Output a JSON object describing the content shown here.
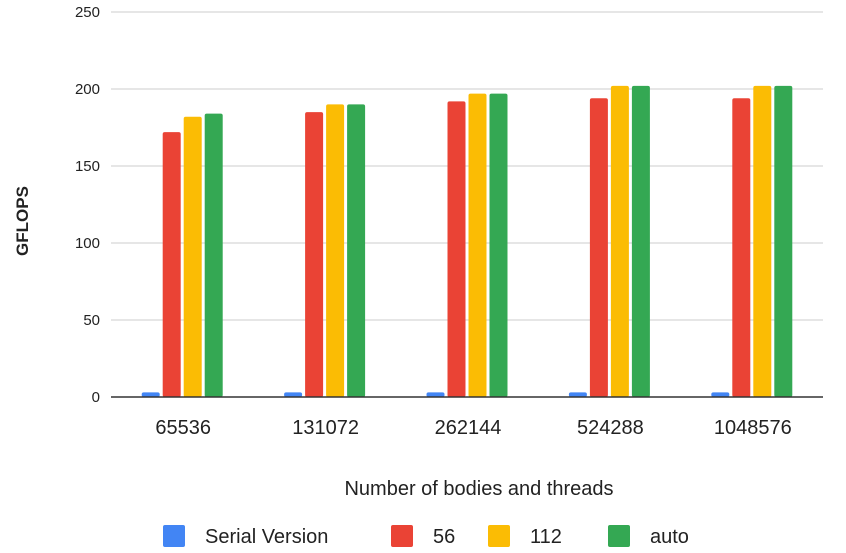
{
  "chart_data": {
    "type": "bar",
    "categories": [
      "65536",
      "131072",
      "262144",
      "524288",
      "1048576"
    ],
    "series": [
      {
        "name": "Serial Version",
        "color": "#4285F4",
        "values": [
          3,
          3,
          3,
          3,
          3
        ]
      },
      {
        "name": "56",
        "color": "#EA4335",
        "values": [
          172,
          185,
          192,
          194,
          194
        ]
      },
      {
        "name": "112",
        "color": "#FBBC04",
        "values": [
          182,
          190,
          197,
          202,
          202
        ]
      },
      {
        "name": "auto",
        "color": "#34A853",
        "values": [
          184,
          190,
          197,
          202,
          202
        ]
      }
    ],
    "ylim": [
      0,
      250
    ],
    "yticks": [
      "0",
      "50",
      "100",
      "150",
      "200",
      "250"
    ],
    "xlabel": "Number of bodies and threads",
    "ylabel": "GFLOPS",
    "grid": true,
    "legend_position": "bottom"
  }
}
